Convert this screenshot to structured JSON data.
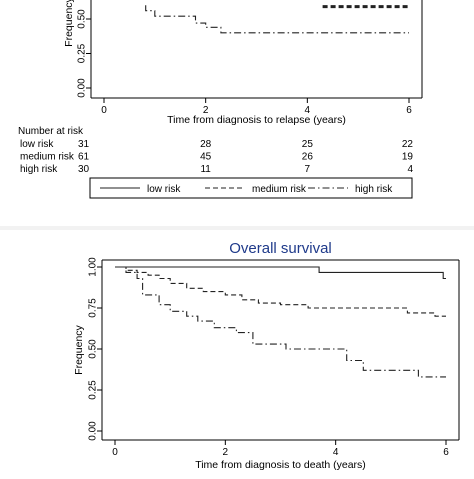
{
  "chart_data": [
    {
      "type": "line",
      "xlabel": "Time from diagnosis to relapse (years)",
      "ylabel": "Frequency",
      "xlim": [
        0,
        6
      ],
      "ylim": [
        0,
        1
      ],
      "xticks": [
        "0",
        "2",
        "4",
        "6"
      ],
      "yticks": [
        "0.00",
        "0.25",
        "0.50"
      ],
      "grid": false,
      "series": [
        {
          "name": "medium risk",
          "style": "dash",
          "x": [
            4.3,
            6
          ],
          "y": [
            0.59,
            0.59
          ]
        },
        {
          "name": "high risk",
          "style": "dashdot",
          "x": [
            0.82,
            0.82,
            1.0,
            1.0,
            1.8,
            1.8,
            2.0,
            2.0,
            2.3,
            2.3,
            6
          ],
          "y": [
            0.6,
            0.56,
            0.56,
            0.52,
            0.52,
            0.47,
            0.47,
            0.44,
            0.44,
            0.4,
            0.4
          ]
        }
      ],
      "risk_table": {
        "title": "Number at risk",
        "rows": [
          {
            "label": "low risk",
            "values": [
              "31",
              "28",
              "25",
              "22"
            ]
          },
          {
            "label": "medium risk",
            "values": [
              "61",
              "45",
              "26",
              "19"
            ]
          },
          {
            "label": "high risk",
            "values": [
              "30",
              "11",
              "7",
              "4"
            ]
          }
        ]
      },
      "legend": {
        "placement": "bottom",
        "entries": [
          {
            "label": "low risk",
            "style": "solid"
          },
          {
            "label": "medium risk",
            "style": "dash"
          },
          {
            "label": "high risk",
            "style": "dashdot"
          }
        ]
      }
    },
    {
      "type": "line",
      "title": "Overall survival",
      "xlabel": "Time from diagnosis to death (years)",
      "ylabel": "Frequency",
      "xlim": [
        0,
        6
      ],
      "ylim": [
        0,
        1
      ],
      "xticks": [
        "0",
        "2",
        "4",
        "6"
      ],
      "yticks": [
        "0.00",
        "0.25",
        "0.50",
        "0.75",
        "1.00"
      ],
      "grid": false,
      "title_color": "#1f3a8a",
      "series": [
        {
          "name": "low risk",
          "style": "solid",
          "x": [
            0,
            3.7,
            3.7,
            5.95,
            5.95,
            6
          ],
          "y": [
            1.0,
            1.0,
            0.967,
            0.967,
            0.93,
            0.93
          ]
        },
        {
          "name": "medium risk",
          "style": "dash",
          "x": [
            0,
            0.2,
            0.2,
            0.4,
            0.4,
            0.6,
            0.6,
            0.8,
            0.8,
            1.0,
            1.0,
            1.3,
            1.3,
            1.6,
            1.6,
            2.0,
            2.0,
            2.3,
            2.3,
            2.6,
            2.6,
            3.0,
            3.0,
            3.5,
            3.5,
            5.3,
            5.3,
            5.8,
            5.8,
            6
          ],
          "y": [
            1.0,
            1.0,
            0.98,
            0.98,
            0.967,
            0.967,
            0.95,
            0.95,
            0.93,
            0.93,
            0.9,
            0.9,
            0.87,
            0.87,
            0.85,
            0.85,
            0.83,
            0.83,
            0.8,
            0.8,
            0.78,
            0.78,
            0.77,
            0.77,
            0.75,
            0.75,
            0.72,
            0.72,
            0.7,
            0.7
          ]
        },
        {
          "name": "high risk",
          "style": "dashdot",
          "x": [
            0,
            0.2,
            0.2,
            0.4,
            0.4,
            0.5,
            0.5,
            0.8,
            0.8,
            1.0,
            1.0,
            1.3,
            1.3,
            1.5,
            1.5,
            1.8,
            1.8,
            2.2,
            2.2,
            2.5,
            2.5,
            3.1,
            3.1,
            4.2,
            4.2,
            4.5,
            4.5,
            5.5,
            5.5,
            6
          ],
          "y": [
            1.0,
            1.0,
            0.967,
            0.967,
            0.93,
            0.93,
            0.83,
            0.83,
            0.77,
            0.77,
            0.73,
            0.73,
            0.7,
            0.7,
            0.67,
            0.67,
            0.63,
            0.63,
            0.6,
            0.6,
            0.53,
            0.53,
            0.5,
            0.5,
            0.43,
            0.43,
            0.37,
            0.37,
            0.33,
            0.33
          ]
        }
      ]
    }
  ]
}
